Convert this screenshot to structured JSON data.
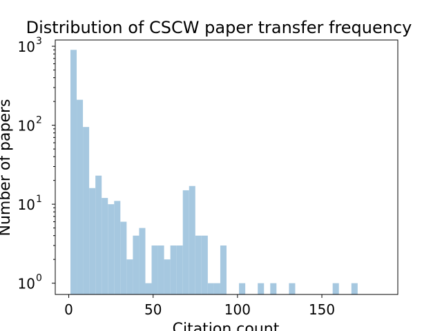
{
  "chart_data": {
    "type": "bar",
    "title": "Distribution of CSCW paper transfer frequency",
    "xlabel": "Citation count",
    "ylabel": "Number of papers",
    "yscale": "log",
    "xlim": [
      -8,
      195
    ],
    "ylim": [
      0.72,
      1200
    ],
    "bar_color": "#a6c8e0",
    "bin_width": 3.7,
    "bin_start": 1,
    "xticks": [
      0,
      50,
      100,
      150
    ],
    "xtick_labels": [
      "0",
      "50",
      "100",
      "150"
    ],
    "yticks": [
      1,
      10,
      100,
      1000
    ],
    "ytick_base": "10",
    "ytick_exponents": [
      "0",
      "1",
      "2",
      "3"
    ],
    "values": [
      900,
      210,
      95,
      16,
      23,
      12,
      10,
      11,
      6,
      2,
      4,
      5,
      1,
      3,
      3,
      2,
      3,
      3,
      15,
      17,
      4,
      4,
      1,
      1,
      3,
      0,
      0,
      1,
      0,
      0,
      1,
      0,
      1,
      0,
      0,
      1,
      0,
      0,
      0,
      0,
      0,
      0,
      1,
      0,
      0,
      1
    ]
  }
}
